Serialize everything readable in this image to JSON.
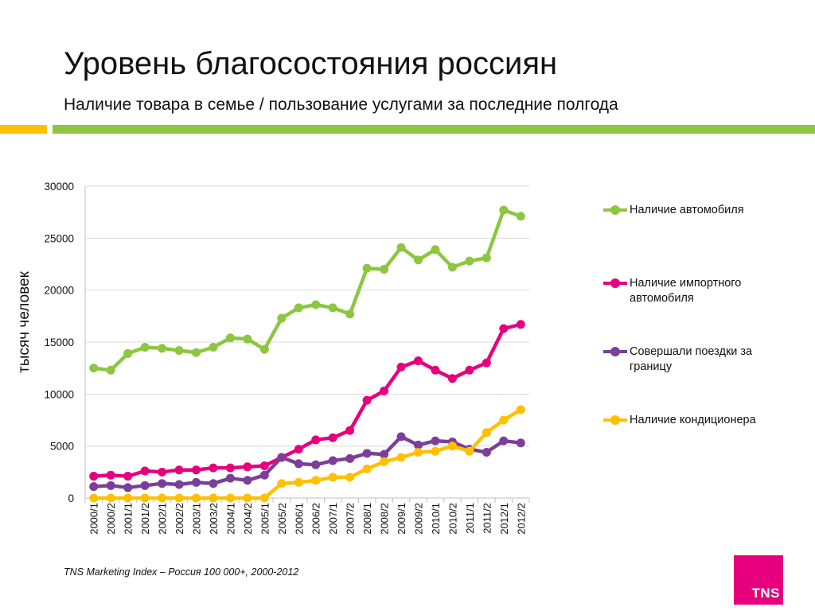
{
  "header": {
    "title": "Уровень благосостояния россиян",
    "subtitle": "Наличие товара в семье / пользование услугами за последние полгода"
  },
  "colors": {
    "accent_orange": "#FFC000",
    "accent_green": "#8DC63F",
    "brand": "#E6007E",
    "grid": "#D9D9D9"
  },
  "chart_data": {
    "type": "line",
    "title": "Уровень благосостояния россиян",
    "subtitle": "Наличие товара в семье / пользование услугами за последние полгода",
    "xlabel": "",
    "ylabel": "тысяч человек",
    "ylim": [
      0,
      30000
    ],
    "yticks": [
      0,
      5000,
      10000,
      15000,
      20000,
      25000,
      30000
    ],
    "grid": true,
    "legend_position": "right",
    "categories": [
      "2000/1",
      "2000/2",
      "2001/1",
      "2001/2",
      "2002/1",
      "2002/2",
      "2003/1",
      "2003/2",
      "2004/1",
      "2004/2",
      "2005/1",
      "2005/2",
      "2006/1",
      "2006/2",
      "2007/1",
      "2007/2",
      "2008/1",
      "2008/2",
      "2009/1",
      "2009/2",
      "2010/1",
      "2010/2",
      "2011/1",
      "2011/2",
      "2012/1",
      "2012/2"
    ],
    "series": [
      {
        "name": "Наличие автомобиля",
        "color": "#8DC63F",
        "values": [
          12500,
          12300,
          13900,
          14500,
          14400,
          14200,
          14000,
          14500,
          15400,
          15300,
          14300,
          17300,
          18300,
          18600,
          18300,
          17700,
          22100,
          22000,
          24100,
          22900,
          23900,
          22200,
          22800,
          23100,
          27700,
          27100
        ]
      },
      {
        "name": "Наличие импортного автомобиля",
        "color": "#E6007E",
        "values": [
          2100,
          2200,
          2100,
          2600,
          2500,
          2700,
          2700,
          2900,
          2900,
          3000,
          3100,
          3900,
          4700,
          5600,
          5800,
          6500,
          9400,
          10300,
          12600,
          13200,
          12300,
          11500,
          12300,
          13000,
          16300,
          16700
        ]
      },
      {
        "name": "Совершали поездки за границу",
        "color": "#7B3F98",
        "values": [
          1100,
          1200,
          1000,
          1200,
          1400,
          1300,
          1500,
          1400,
          1900,
          1700,
          2200,
          3900,
          3300,
          3200,
          3600,
          3800,
          4300,
          4200,
          5900,
          5100,
          5500,
          5400,
          4700,
          4400,
          5500,
          5300
        ]
      },
      {
        "name": "Наличие кондиционера",
        "color": "#FFC000",
        "values": [
          0,
          0,
          0,
          0,
          0,
          0,
          0,
          0,
          0,
          0,
          0,
          1400,
          1500,
          1700,
          2000,
          2000,
          2800,
          3500,
          3900,
          4400,
          4500,
          5000,
          4500,
          6300,
          7500,
          8500
        ]
      }
    ],
    "source": "TNS Marketing Index – Россия 100 000+, 2000-2012"
  },
  "logo": {
    "text": "TNS"
  }
}
